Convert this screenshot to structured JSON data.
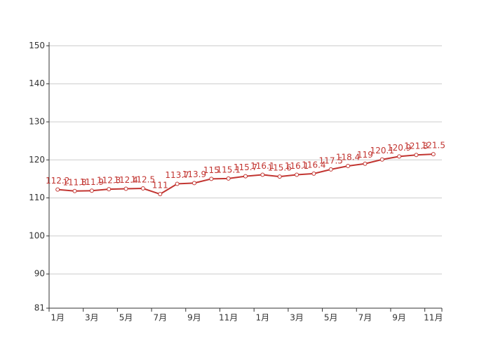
{
  "chart_data": {
    "type": "line",
    "categories": [
      "1月",
      null,
      "3月",
      null,
      "5月",
      null,
      "7月",
      null,
      "9月",
      null,
      "11月",
      null,
      "1月",
      null,
      "3月",
      null,
      "5月",
      null,
      "7月",
      null,
      "9月",
      null,
      "11月"
    ],
    "values": [
      112.2,
      111.8,
      111.9,
      112.3,
      112.4,
      112.5,
      111,
      113.7,
      113.9,
      115,
      115.1,
      115.7,
      116.1,
      115.6,
      116.1,
      116.4,
      117.5,
      118.4,
      119,
      120.1,
      120.9,
      121.3,
      121.5
    ],
    "color": "#c23531",
    "ylim": [
      81,
      151
    ],
    "yticks": [
      81,
      90,
      100,
      110,
      120,
      130,
      140,
      150
    ],
    "grid": true
  }
}
